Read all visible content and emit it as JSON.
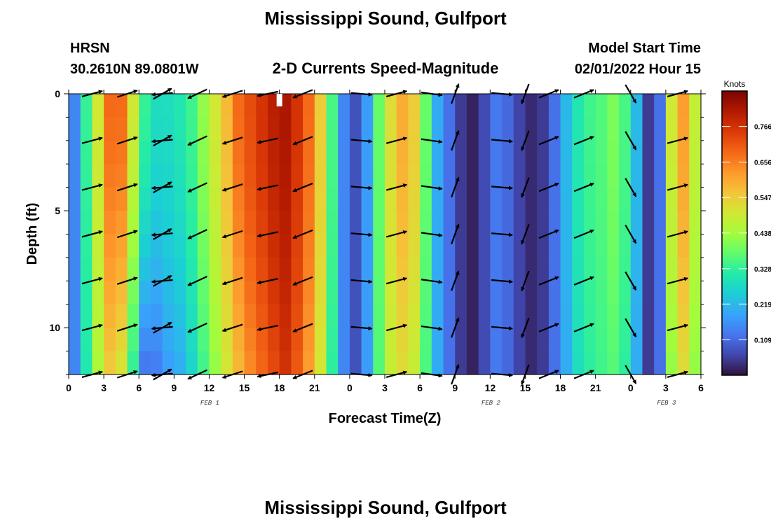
{
  "title": "Mississippi Sound, Gulfport",
  "station": {
    "name": "HRSN",
    "coords": "30.2610N  89.0801W"
  },
  "product": "2-D Currents Speed-Magnitude",
  "model": {
    "label": "Model Start Time",
    "value": "02/01/2022 Hour 15"
  },
  "chart_data": {
    "type": "heatmap",
    "title": "2-D Currents Speed-Magnitude",
    "xlabel": "Forecast Time(Z)",
    "ylabel": "Depth (ft)",
    "x_range_hours": [
      0,
      54
    ],
    "y_range_ft": [
      0,
      12
    ],
    "x_ticks": [
      "0",
      "3",
      "6",
      "9",
      "12",
      "15",
      "18",
      "21",
      "0",
      "3",
      "6",
      "9",
      "12",
      "15",
      "18",
      "21",
      "0",
      "3",
      "6"
    ],
    "y_ticks": [
      "0",
      "5",
      "10"
    ],
    "date_labels": [
      {
        "label": "FEB 1",
        "hour": 12
      },
      {
        "label": "FEB 2",
        "hour": 36
      },
      {
        "label": "FEB 3",
        "hour": 51
      }
    ],
    "current_time_marker_hour": 18,
    "column_hours": [
      0,
      1,
      2,
      3,
      4,
      5,
      6,
      7,
      8,
      9,
      10,
      11,
      12,
      13,
      14,
      15,
      16,
      17,
      18,
      19,
      20,
      21,
      22,
      23,
      24,
      25,
      26,
      27,
      28,
      29,
      30,
      31,
      32,
      33,
      34,
      35,
      36,
      37,
      38,
      39,
      40,
      41,
      42,
      43,
      44,
      45,
      46,
      47,
      48,
      49,
      50,
      51,
      52,
      53
    ],
    "surface_speed_knots": [
      0.15,
      0.33,
      0.5,
      0.68,
      0.68,
      0.5,
      0.33,
      0.28,
      0.28,
      0.3,
      0.34,
      0.42,
      0.5,
      0.58,
      0.68,
      0.72,
      0.76,
      0.8,
      0.82,
      0.76,
      0.68,
      0.55,
      0.35,
      0.15,
      0.08,
      0.18,
      0.38,
      0.52,
      0.6,
      0.55,
      0.38,
      0.2,
      0.12,
      0.05,
      0.02,
      0.07,
      0.13,
      0.11,
      0.06,
      0.03,
      0.05,
      0.12,
      0.22,
      0.3,
      0.34,
      0.36,
      0.4,
      0.35,
      0.22,
      0.05,
      0.12,
      0.5,
      0.62,
      0.48
    ],
    "bottom_speed_knots": [
      0.15,
      0.3,
      0.45,
      0.55,
      0.5,
      0.32,
      0.12,
      0.13,
      0.18,
      0.2,
      0.26,
      0.34,
      0.42,
      0.5,
      0.58,
      0.64,
      0.68,
      0.72,
      0.76,
      0.7,
      0.62,
      0.5,
      0.32,
      0.15,
      0.08,
      0.18,
      0.36,
      0.48,
      0.52,
      0.48,
      0.35,
      0.2,
      0.12,
      0.05,
      0.02,
      0.07,
      0.13,
      0.11,
      0.06,
      0.03,
      0.05,
      0.12,
      0.2,
      0.28,
      0.32,
      0.34,
      0.36,
      0.32,
      0.2,
      0.05,
      0.12,
      0.42,
      0.52,
      0.42
    ],
    "vector_depths_ft": [
      0,
      2,
      4,
      6,
      8,
      10,
      12
    ],
    "vectors": [
      {
        "hour": 2,
        "dir_deg": 75
      },
      {
        "hour": 5,
        "dir_deg": 72
      },
      {
        "hour": 8,
        "dir_deg": 60
      },
      {
        "hour": 8,
        "dir_deg": 265
      },
      {
        "hour": 11,
        "dir_deg": 245
      },
      {
        "hour": 14,
        "dir_deg": 252
      },
      {
        "hour": 17,
        "dir_deg": 258
      },
      {
        "hour": 20,
        "dir_deg": 248
      },
      {
        "hour": 25,
        "dir_deg": 95
      },
      {
        "hour": 28,
        "dir_deg": 75
      },
      {
        "hour": 31,
        "dir_deg": 98
      },
      {
        "hour": 33,
        "dir_deg": 20
      },
      {
        "hour": 37,
        "dir_deg": 95
      },
      {
        "hour": 39,
        "dir_deg": 200
      },
      {
        "hour": 41,
        "dir_deg": 68
      },
      {
        "hour": 44,
        "dir_deg": 68
      },
      {
        "hour": 48,
        "dir_deg": 150
      },
      {
        "hour": 52,
        "dir_deg": 75
      }
    ],
    "colorbar": {
      "unit": "Knots",
      "min": 0.0,
      "max": 0.875,
      "ticks": [
        "0.766",
        "0.656",
        "0.547",
        "0.438",
        "0.328",
        "0.219",
        "0.109"
      ]
    }
  },
  "repeat_title": "Mississippi Sound, Gulfport"
}
